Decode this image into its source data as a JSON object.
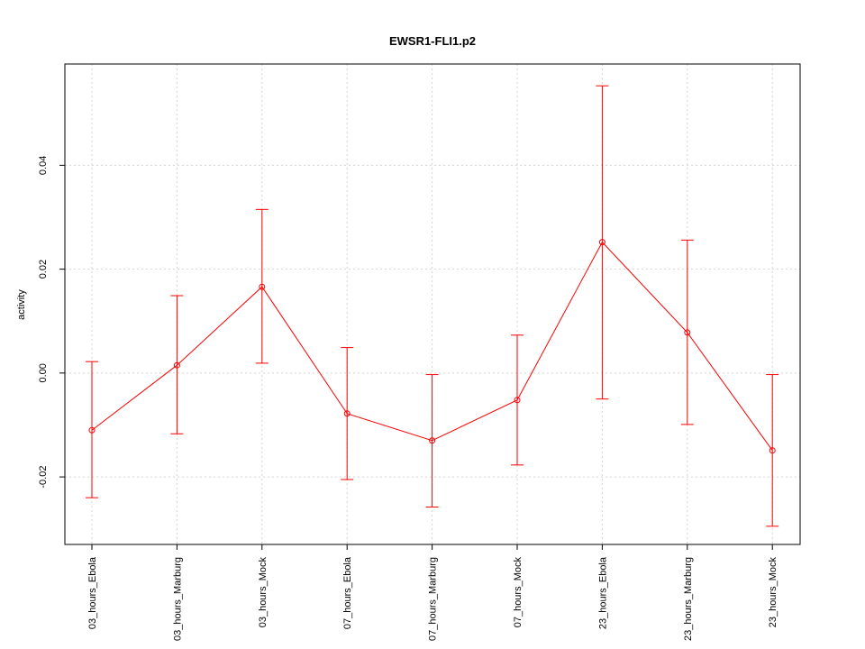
{
  "chart_data": {
    "type": "line",
    "title": "EWSR1-FLI1.p2",
    "xlabel": "",
    "ylabel": "activity",
    "categories": [
      "03_hours_Ebola",
      "03_hours_Marburg",
      "03_hours_Mock",
      "07_hours_Ebola",
      "07_hours_Marburg",
      "07_hours_Mock",
      "23_hours_Ebola",
      "23_hours_Marburg",
      "23_hours_Mock"
    ],
    "values": [
      -0.011,
      0.0015,
      0.0166,
      -0.0078,
      -0.013,
      -0.0052,
      0.0252,
      0.0078,
      -0.0149
    ],
    "upper": [
      0.0022,
      0.0149,
      0.0315,
      0.0049,
      -0.0003,
      0.0073,
      0.0553,
      0.0256,
      -0.0003
    ],
    "lower": [
      -0.024,
      -0.0117,
      0.0019,
      -0.0205,
      -0.0258,
      -0.0177,
      -0.005,
      -0.0099,
      -0.0295
    ],
    "yticks": [
      -0.02,
      0.0,
      0.02,
      0.04
    ],
    "ytick_labels": [
      "-0.02",
      "0.00",
      "0.02",
      "0.04"
    ],
    "ylim": [
      -0.033,
      0.0595
    ],
    "grid": true,
    "color": "#ff0000"
  }
}
